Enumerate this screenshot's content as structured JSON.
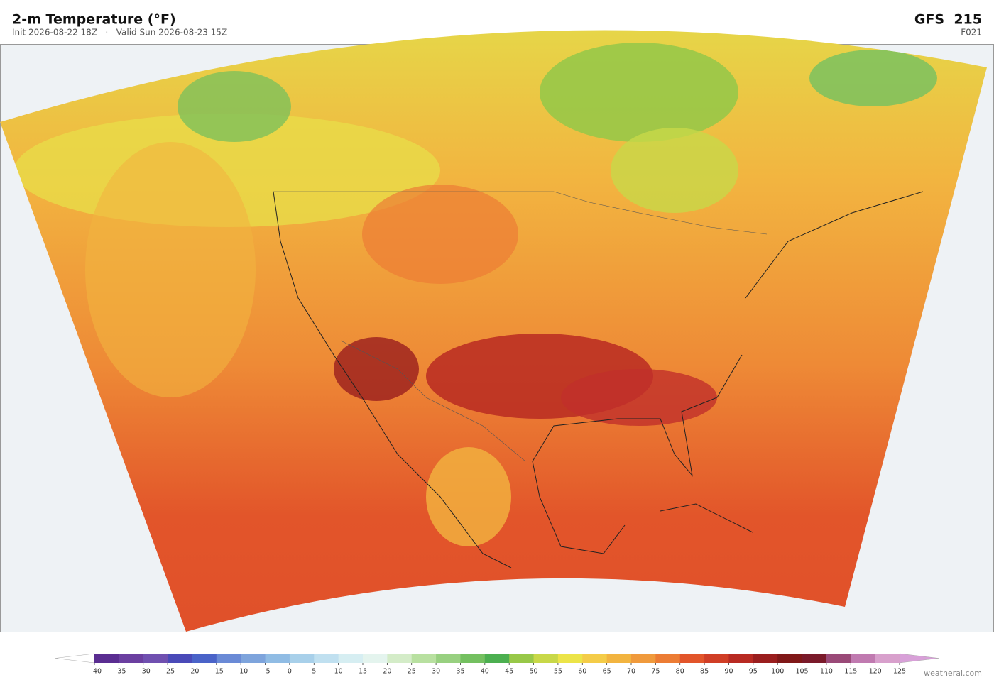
{
  "header": {
    "title": "2-m Temperature  (°F)",
    "subtitle": "Init 2026-08-22 18Z   ·   Valid Sun 2026-08-23 15Z",
    "model": "GFS  215",
    "forecast_hour": "F021"
  },
  "colorbar": {
    "ticks": [
      {
        "value": -40,
        "label": "−40"
      },
      {
        "value": -35,
        "label": "−35"
      },
      {
        "value": -30,
        "label": "−30"
      },
      {
        "value": -25,
        "label": "−25"
      },
      {
        "value": -20,
        "label": "−20"
      },
      {
        "value": -15,
        "label": "−15"
      },
      {
        "value": -10,
        "label": "−10"
      },
      {
        "value": -5,
        "label": "−5"
      },
      0,
      5,
      10,
      15,
      20,
      25,
      30,
      35,
      40,
      45,
      50,
      55,
      60,
      65,
      70,
      75,
      80,
      85,
      90,
      95,
      100,
      105,
      110,
      115,
      120,
      125
    ],
    "colors": [
      "#5a2d91",
      "#6b3fa0",
      "#7050b0",
      "#4a4ab8",
      "#4a63c8",
      "#6a8ad6",
      "#7ea4dc",
      "#90bce4",
      "#a8d0ea",
      "#c0e0f0",
      "#d6eef2",
      "#e4f4ee",
      "#d4ecc8",
      "#b8e0a0",
      "#98d080",
      "#74c060",
      "#4caf50",
      "#98c848",
      "#c8d848",
      "#ece448",
      "#f4cc48",
      "#f2b440",
      "#f09a3c",
      "#ec7c34",
      "#e2552a",
      "#d03e26",
      "#b82a22",
      "#9a1e1e",
      "#801818",
      "#7a1a2a",
      "#9a4a78",
      "#c07ab0",
      "#d8a0cc"
    ],
    "under_color": "#ffffff",
    "over_color": "#d8a0d8"
  },
  "footer": {
    "credit": "weatherai.com"
  }
}
